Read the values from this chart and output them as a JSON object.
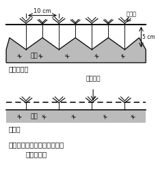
{
  "title_line1": "図１　べたがけ下の溝底播種",
  "title_line2": "法と従来法",
  "label_top_method": "溝底播種法",
  "label_bottom_method": "従来法",
  "label_betagake": "べたがけ",
  "label_sakumotsu": "作物体",
  "label_doso": "土壌",
  "label_10cm": "10 cm",
  "label_5cm": "5 cm",
  "bg_color": "#ffffff",
  "soil_gray": "#bbbbbb",
  "line_color": "#111111"
}
